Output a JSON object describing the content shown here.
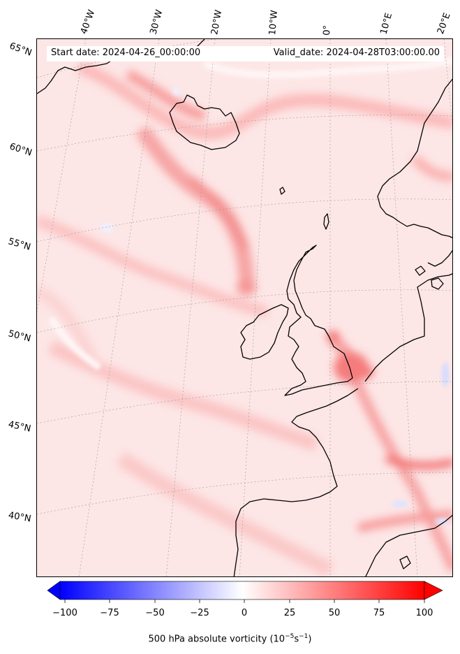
{
  "header": {
    "start_date": "Start date: 2024-04-26_00:00:00",
    "valid_date": "Valid_date: 2024-04-28T03:00:00.00"
  },
  "longitude_labels": [
    "40°W",
    "30°W",
    "20°W",
    "10°W",
    "0°",
    "10°E",
    "20°E"
  ],
  "latitude_labels": [
    "65°N",
    "60°N",
    "55°N",
    "50°N",
    "45°N",
    "40°N"
  ],
  "colorbar": {
    "ticks": [
      "−100",
      "−75",
      "−50",
      "−25",
      "0",
      "25",
      "50",
      "75",
      "100"
    ],
    "title": "500 hPa absolute vorticity (10",
    "title_exp1": "−5",
    "title_mid": "s",
    "title_exp2": "−1",
    "title_end": ")",
    "colors": {
      "low": "#0000ff",
      "mid": "#ffffff",
      "high": "#ff0000"
    }
  },
  "map": {
    "field": "500 hPa absolute vorticity",
    "background_color": "#fde8e8",
    "coastline_color": "#000000"
  }
}
